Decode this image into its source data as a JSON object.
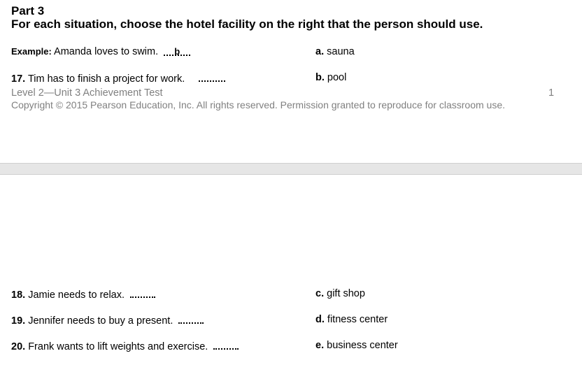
{
  "part": {
    "title": "Part 3",
    "instructions": "For each situation, choose the hotel facility on the right that the person should use."
  },
  "example": {
    "label": "Example:",
    "text": "Amanda loves to swim.",
    "answer": "b"
  },
  "questions": [
    {
      "num": "17.",
      "text": "Tim has to finish a project for work."
    },
    {
      "num": "18.",
      "text": "Jamie needs to relax."
    },
    {
      "num": "19.",
      "text": "Jennifer needs to buy a present."
    },
    {
      "num": "20.",
      "text": "Frank wants to lift weights and exercise."
    }
  ],
  "options": [
    {
      "letter": "a.",
      "text": "sauna"
    },
    {
      "letter": "b.",
      "text": "pool"
    },
    {
      "letter": "c.",
      "text": "gift shop"
    },
    {
      "letter": "d.",
      "text": "fitness center"
    },
    {
      "letter": "e.",
      "text": "business center"
    }
  ],
  "footer": {
    "test_title": "Level 2—Unit 3 Achievement Test",
    "copyright": "Copyright © 2015 Pearson Education, Inc. All rights reserved. Permission granted to reproduce for classroom use.",
    "page_number": "1"
  }
}
